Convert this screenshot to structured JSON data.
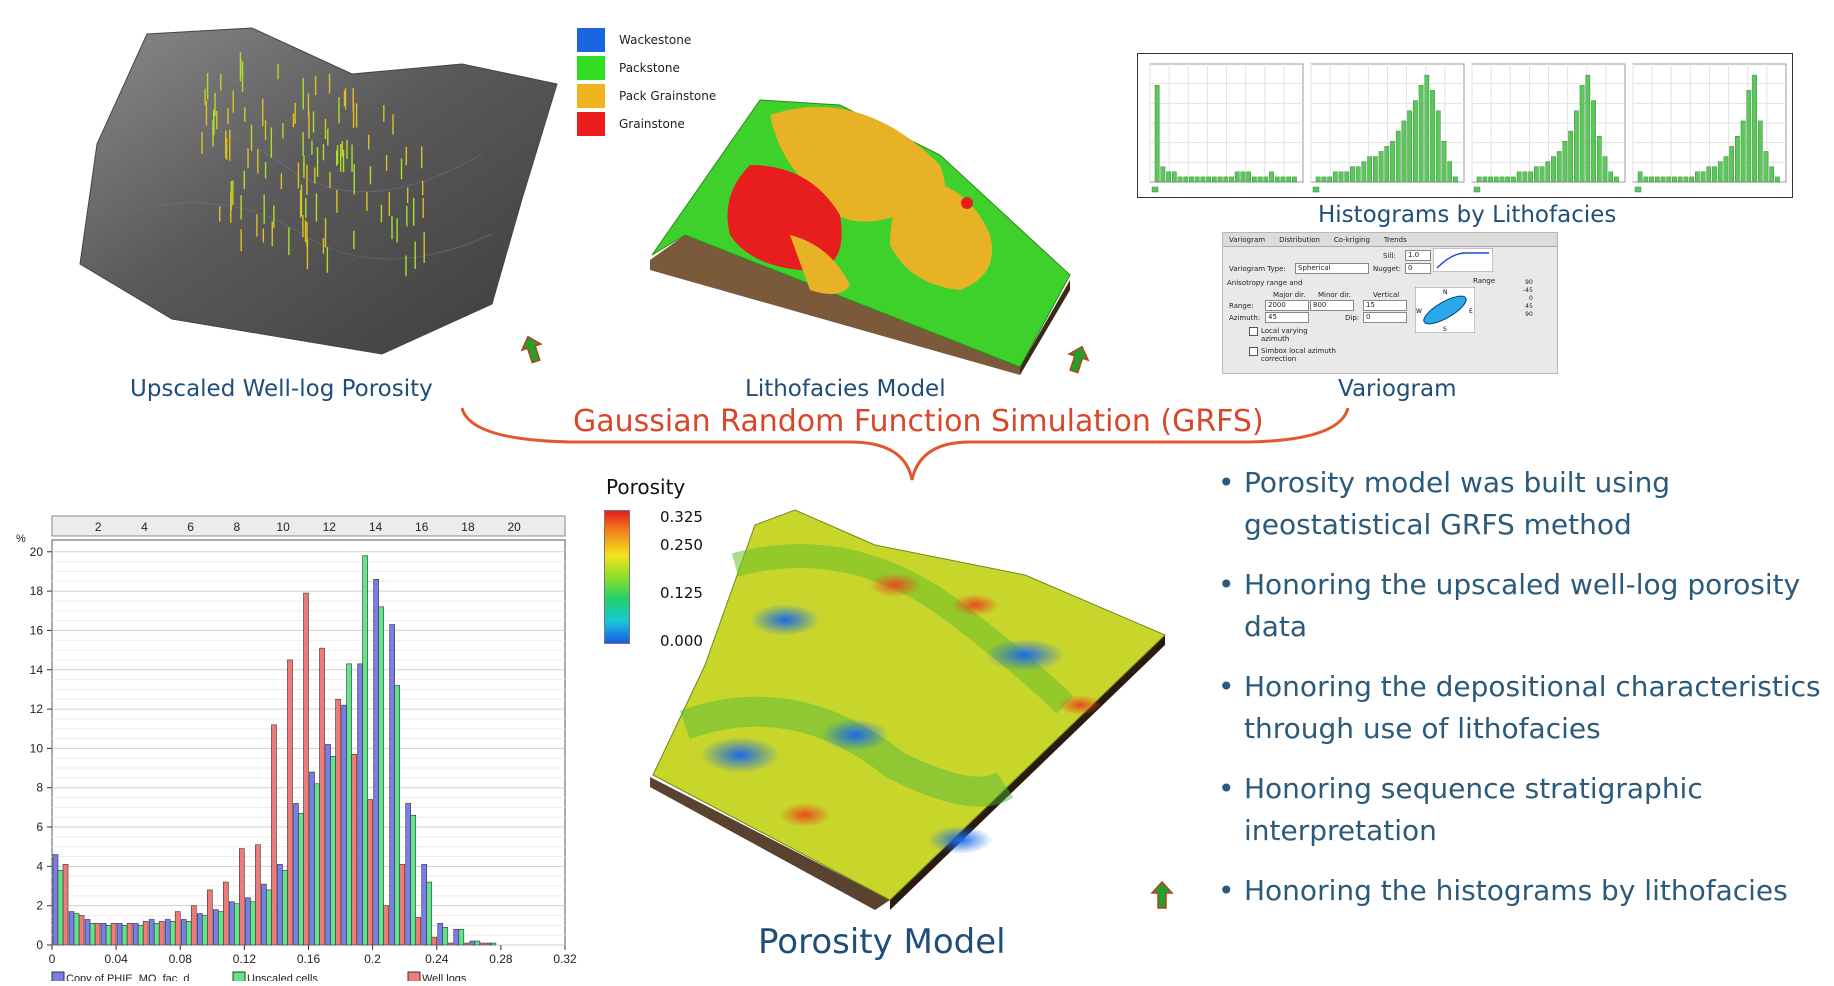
{
  "captions": {
    "upscaled": "Upscaled Well-log  Porosity",
    "lithofacies": "Lithofacies Model",
    "variogram": "Variogram",
    "histograms": "Histograms by Lithofacies",
    "grfs": "Gaussian Random Function Simulation (GRFS)",
    "porosity_model": "Porosity Model"
  },
  "facies_legend": [
    {
      "label": "Wackestone",
      "color": "#1a66e0"
    },
    {
      "label": "Packstone",
      "color": "#33dd22"
    },
    {
      "label": "Pack Grainstone",
      "color": "#f0b41e"
    },
    {
      "label": "Grainstone",
      "color": "#ee1c1c"
    }
  ],
  "porosity_scale": {
    "title": "Porosity",
    "ticks": [
      "0.325",
      "0.250",
      "0.125",
      "0.000"
    ]
  },
  "bullets": [
    "Porosity model was built using geostatistical GRFS method",
    "Honoring the upscaled well-log porosity data",
    "Honoring the depositional characteristics through use of lithofacies",
    "Honoring sequence stratigraphic interpretation",
    "Honoring the histograms by lithofacies"
  ],
  "variogram_panel": {
    "tabs": [
      "Variogram",
      "Distribution",
      "Co-kriging",
      "Trends"
    ],
    "sill_label": "Sill:",
    "sill": "1.0",
    "nugget_label": "Nugget:",
    "nugget": "0",
    "type_label": "Variogram Type:",
    "type": "Spherical",
    "aniso_label": "Anisotropy range and",
    "range_label": "Range",
    "major_label": "Major dir.",
    "minor_label": "Minor dir.",
    "vertical_label": "Vertical",
    "range_row_label": "Range:",
    "major": "2000",
    "minor": "800",
    "vertical": "15",
    "azimuth_label": "Azimuth:",
    "azimuth": "45",
    "dip_label": "Dip:",
    "dip": "0",
    "local_azimuth": "Local varying azimuth",
    "simbox": "Simbox local azimuth correction",
    "angle_ticks": [
      "90",
      "-45",
      "0",
      "45",
      "90"
    ]
  },
  "chart_data": {
    "type": "bar",
    "ylabel": "%",
    "x_bottom_ticks": [
      "0",
      "0.04",
      "0.08",
      "0.12",
      "0.16",
      "0.2",
      "0.24",
      "0.28",
      "0.32"
    ],
    "x_top_ticks": [
      "2",
      "4",
      "6",
      "8",
      "10",
      "12",
      "14",
      "16",
      "18",
      "20"
    ],
    "y_ticks": [
      "0",
      "2",
      "4",
      "6",
      "8",
      "10",
      "12",
      "14",
      "16",
      "18",
      "20"
    ],
    "xlim": [
      0,
      0.32
    ],
    "ylim": [
      0,
      20.6
    ],
    "bin_width": 0.01,
    "bin_starts": [
      0.0,
      0.01,
      0.02,
      0.03,
      0.04,
      0.05,
      0.06,
      0.07,
      0.08,
      0.09,
      0.1,
      0.11,
      0.12,
      0.13,
      0.14,
      0.15,
      0.16,
      0.17,
      0.18,
      0.19,
      0.2,
      0.21,
      0.22,
      0.23,
      0.24,
      0.25,
      0.26,
      0.27,
      0.28,
      0.29,
      0.3
    ],
    "series": [
      {
        "name": "Copy of PHIE_MO_fac_d",
        "color": "#7b7bea",
        "values": [
          4.6,
          1.7,
          1.3,
          1.1,
          1.1,
          1.1,
          1.3,
          1.3,
          1.3,
          1.6,
          1.8,
          2.2,
          2.4,
          3.1,
          4.1,
          7.2,
          8.8,
          10.2,
          12.2,
          14.3,
          18.6,
          16.3,
          7.2,
          4.1,
          1.1,
          0.8,
          0.2,
          0.1,
          0,
          0,
          0
        ]
      },
      {
        "name": "Upscaled cells",
        "color": "#5de68a",
        "values": [
          3.8,
          1.6,
          1.1,
          1.0,
          1.0,
          1.0,
          1.1,
          1.2,
          1.2,
          1.5,
          1.7,
          2.1,
          2.2,
          2.8,
          3.8,
          6.7,
          8.2,
          9.6,
          14.3,
          19.8,
          17.2,
          13.2,
          6.6,
          3.2,
          0.9,
          0.8,
          0.2,
          0.1,
          0,
          0,
          0
        ]
      },
      {
        "name": "Well logs",
        "color": "#f07a7a",
        "values": [
          4.1,
          1.5,
          1.1,
          1.1,
          1.1,
          1.2,
          1.2,
          1.7,
          2.0,
          2.8,
          3.2,
          4.9,
          5.1,
          11.2,
          14.5,
          17.9,
          15.1,
          12.5,
          9.7,
          7.4,
          2.0,
          4.1,
          1.4,
          0.4,
          0.1,
          0.1,
          0.1,
          0.0,
          0,
          0,
          0
        ]
      }
    ],
    "histograms_by_lithofacies": [
      {
        "values": [
          19,
          3,
          2,
          2,
          1,
          1,
          1,
          1,
          1,
          1,
          1,
          1,
          1,
          1,
          2,
          2,
          2,
          1,
          1,
          1,
          2,
          1,
          1,
          1,
          1
        ]
      },
      {
        "values": [
          1,
          1,
          1,
          2,
          2,
          2,
          3,
          3,
          4,
          5,
          5,
          6,
          7,
          8,
          10,
          12,
          14,
          16,
          19,
          21,
          18,
          14,
          8,
          4,
          1
        ]
      },
      {
        "values": [
          1,
          1,
          1,
          1,
          1,
          1,
          1,
          2,
          2,
          2,
          3,
          3,
          4,
          5,
          6,
          8,
          10,
          14,
          19,
          21,
          16,
          9,
          5,
          2,
          1
        ]
      },
      {
        "values": [
          2,
          1,
          1,
          1,
          1,
          1,
          1,
          1,
          1,
          1,
          2,
          2,
          3,
          3,
          4,
          5,
          7,
          9,
          12,
          18,
          21,
          12,
          6,
          3,
          1
        ]
      }
    ]
  }
}
